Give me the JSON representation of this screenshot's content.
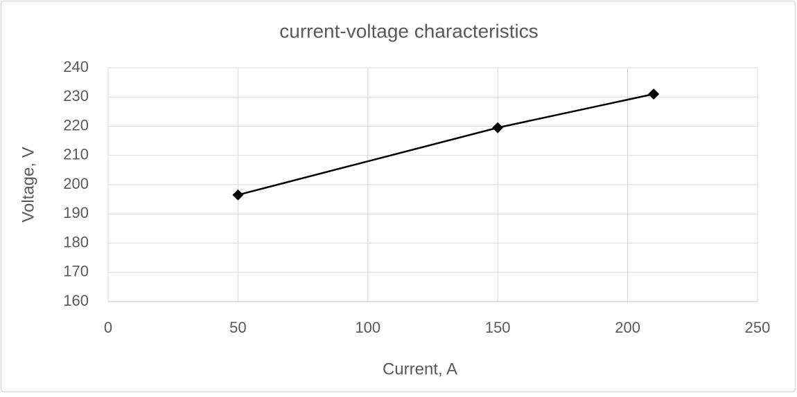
{
  "chart_data": {
    "type": "line",
    "title": "current-voltage characteristics",
    "x_label": "Current, A",
    "y_label": "Voltage, V",
    "x": [
      50,
      150,
      210
    ],
    "series": [
      {
        "name": "Voltage",
        "color": "#000000",
        "values": [
          196.5,
          219.5,
          231
        ]
      }
    ],
    "xlim": [
      0,
      250
    ],
    "xticks": [
      0,
      50,
      100,
      150,
      200,
      250
    ],
    "ylim": [
      160,
      240
    ],
    "yticks": [
      160,
      170,
      180,
      190,
      200,
      210,
      220,
      230,
      240
    ],
    "grid": true,
    "marker": "diamond"
  }
}
